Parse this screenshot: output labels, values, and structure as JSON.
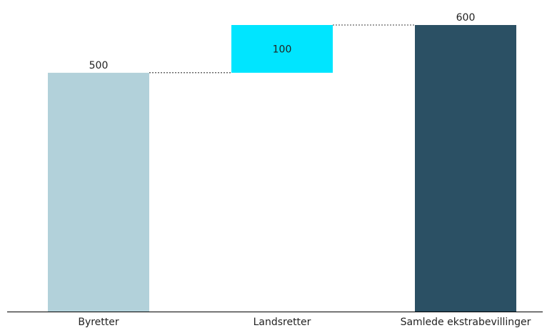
{
  "chart_data": {
    "type": "bar",
    "subtype": "waterfall",
    "categories": [
      "Byretter",
      "Landsretter",
      "Samlede ekstrabevillinger"
    ],
    "values": [
      500,
      100,
      600
    ],
    "bar_kinds": [
      "increase",
      "increase",
      "total"
    ],
    "labels": [
      "500",
      "100",
      "600"
    ],
    "label_positions": [
      "above",
      "inside",
      "above"
    ],
    "colors": [
      "#b2d1da",
      "#00e5ff",
      "#2b5064"
    ],
    "connector_color": "#000000",
    "axis_color": "#000000",
    "title": "",
    "xlabel": "",
    "ylabel": "",
    "ylim": [
      0,
      600
    ],
    "grid": false,
    "legend": "none"
  }
}
